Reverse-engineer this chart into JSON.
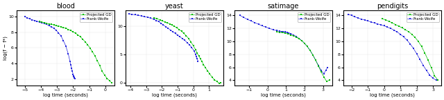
{
  "titles": [
    "blood",
    "yeast",
    "satimage",
    "pendigits"
  ],
  "ylabel": "log(f − f*)",
  "xlabel": "log time (seconds)",
  "legend_labels": [
    "Projected GD",
    "Frank-Wolfe"
  ],
  "colors": {
    "pgd": "#00bb00",
    "fw": "#2222dd"
  },
  "plots": {
    "blood": {
      "xlim": [
        -5.5,
        0.55
      ],
      "ylim": [
        1.2,
        10.8
      ],
      "xticks": [
        -5,
        -4,
        -3,
        -2,
        -1,
        0
      ],
      "yticks": [
        2,
        4,
        6,
        8,
        10
      ],
      "pgd_x": [
        -4.1,
        -3.95,
        -3.8,
        -3.65,
        -3.5,
        -3.35,
        -3.2,
        -3.05,
        -2.9,
        -2.75,
        -2.6,
        -2.45,
        -2.3,
        -2.15,
        -2.0,
        -1.85,
        -1.7,
        -1.55,
        -1.4,
        -1.25,
        -1.1,
        -0.95,
        -0.8,
        -0.65,
        -0.5,
        -0.35,
        -0.2,
        -0.05,
        0.1,
        0.25,
        0.4
      ],
      "pgd_y": [
        9.4,
        9.3,
        9.25,
        9.15,
        9.05,
        9.0,
        8.95,
        8.85,
        8.8,
        8.7,
        8.6,
        8.5,
        8.35,
        8.2,
        8.05,
        7.85,
        7.65,
        7.4,
        7.1,
        6.75,
        6.4,
        5.95,
        5.5,
        4.95,
        4.35,
        3.7,
        3.0,
        2.5,
        2.1,
        1.8,
        1.5
      ],
      "fw_x": [
        -5.0,
        -4.85,
        -4.7,
        -4.55,
        -4.4,
        -4.25,
        -4.1,
        -3.95,
        -3.8,
        -3.65,
        -3.5,
        -3.35,
        -3.2,
        -3.05,
        -2.9,
        -2.75,
        -2.6,
        -2.45,
        -2.3,
        -2.2,
        -2.15,
        -2.1,
        -2.05,
        -2.0,
        -1.98,
        -1.96,
        -1.94,
        -1.92,
        -1.9
      ],
      "fw_y": [
        10.0,
        9.85,
        9.7,
        9.6,
        9.5,
        9.4,
        9.3,
        9.2,
        9.1,
        9.0,
        8.85,
        8.7,
        8.5,
        8.25,
        7.9,
        7.5,
        6.9,
        6.2,
        5.2,
        4.3,
        3.8,
        3.4,
        3.0,
        2.6,
        2.4,
        2.3,
        2.2,
        2.15,
        2.1
      ]
    },
    "yeast": {
      "xlim": [
        -4.3,
        1.9
      ],
      "ylim": [
        -0.5,
        12.8
      ],
      "xticks": [
        -4,
        -3,
        -2,
        -1,
        0,
        1
      ],
      "yticks": [
        0,
        5,
        10
      ],
      "pgd_x": [
        -2.5,
        -2.3,
        -2.1,
        -1.95,
        -1.8,
        -1.65,
        -1.5,
        -1.35,
        -1.2,
        -1.05,
        -0.9,
        -0.75,
        -0.6,
        -0.45,
        -0.3,
        -0.15,
        0.0,
        0.15,
        0.25,
        0.35,
        0.45,
        0.55,
        0.65,
        0.75,
        0.9,
        1.05,
        1.2,
        1.35,
        1.5,
        1.65,
        1.75
      ],
      "pgd_y": [
        11.5,
        11.3,
        11.1,
        10.9,
        10.75,
        10.6,
        10.4,
        10.2,
        9.95,
        9.7,
        9.4,
        9.1,
        8.7,
        8.3,
        7.8,
        7.2,
        6.5,
        5.8,
        5.2,
        4.7,
        4.2,
        3.7,
        3.2,
        2.7,
        2.1,
        1.5,
        0.9,
        0.5,
        0.15,
        -0.1,
        0.0
      ],
      "fw_x": [
        -4.1,
        -3.9,
        -3.7,
        -3.5,
        -3.3,
        -3.1,
        -2.9,
        -2.7,
        -2.5,
        -2.35,
        -2.2,
        -2.05,
        -1.9,
        -1.75,
        -1.6,
        -1.45,
        -1.3,
        -1.15,
        -1.0,
        -0.85,
        -0.7,
        -0.55,
        -0.4,
        -0.25,
        -0.1,
        0.05,
        0.15,
        0.2,
        0.25,
        0.3
      ],
      "fw_y": [
        12.2,
        12.1,
        12.0,
        11.9,
        11.8,
        11.7,
        11.55,
        11.4,
        11.2,
        11.0,
        10.8,
        10.5,
        10.2,
        9.9,
        9.6,
        9.3,
        9.0,
        8.7,
        8.4,
        8.1,
        7.8,
        7.5,
        7.1,
        6.7,
        6.2,
        5.6,
        5.0,
        4.6,
        4.2,
        3.8
      ]
    },
    "satimage": {
      "xlim": [
        -1.8,
        3.5
      ],
      "ylim": [
        3.2,
        14.8
      ],
      "xticks": [
        -1,
        0,
        1,
        2,
        3
      ],
      "yticks": [
        4,
        6,
        8,
        10,
        12,
        14
      ],
      "pgd_x": [
        0.5,
        0.65,
        0.8,
        0.95,
        1.1,
        1.25,
        1.4,
        1.55,
        1.7,
        1.85,
        2.0,
        2.15,
        2.3,
        2.45,
        2.6,
        2.75,
        2.9,
        3.05,
        3.2,
        3.35
      ],
      "pgd_y": [
        11.5,
        11.4,
        11.35,
        11.25,
        11.15,
        11.0,
        10.85,
        10.65,
        10.4,
        10.1,
        9.7,
        9.2,
        8.6,
        7.9,
        7.1,
        6.2,
        5.3,
        4.5,
        3.8,
        4.0
      ],
      "fw_x": [
        -1.5,
        -1.3,
        -1.1,
        -0.9,
        -0.7,
        -0.5,
        -0.3,
        -0.1,
        0.1,
        0.3,
        0.5,
        0.65,
        0.75,
        0.85,
        0.95,
        1.05,
        1.15,
        1.25,
        1.4,
        1.55,
        1.7,
        1.85,
        2.0,
        2.15,
        2.3,
        2.45,
        2.6,
        2.75,
        2.9,
        3.05,
        3.15,
        3.25
      ],
      "fw_y": [
        14.0,
        13.7,
        13.4,
        13.15,
        12.9,
        12.65,
        12.4,
        12.2,
        12.0,
        11.8,
        11.65,
        11.55,
        11.5,
        11.45,
        11.45,
        11.4,
        11.3,
        11.2,
        11.0,
        10.75,
        10.45,
        10.1,
        9.7,
        9.2,
        8.6,
        7.9,
        7.1,
        6.3,
        5.5,
        5.0,
        5.5,
        6.0
      ]
    },
    "pendigits": {
      "xlim": [
        -2.5,
        3.5
      ],
      "ylim": [
        3.2,
        14.8
      ],
      "xticks": [
        -2,
        -1,
        0,
        1,
        2,
        3
      ],
      "yticks": [
        4,
        6,
        8,
        10,
        12,
        14
      ],
      "pgd_x": [
        -0.1,
        0.1,
        0.3,
        0.5,
        0.7,
        0.9,
        1.1,
        1.3,
        1.5,
        1.7,
        1.9,
        2.1,
        2.3,
        2.5,
        2.7,
        2.9,
        3.1,
        3.3
      ],
      "pgd_y": [
        13.5,
        13.3,
        13.1,
        12.85,
        12.6,
        12.35,
        12.1,
        11.8,
        11.5,
        11.1,
        10.6,
        10.0,
        9.2,
        8.2,
        7.1,
        5.9,
        4.7,
        4.0
      ],
      "fw_x": [
        -2.2,
        -2.0,
        -1.8,
        -1.6,
        -1.4,
        -1.2,
        -1.0,
        -0.8,
        -0.6,
        -0.4,
        -0.2,
        0.0,
        0.2,
        0.4,
        0.6,
        0.8,
        1.0,
        1.2,
        1.4,
        1.6,
        1.8,
        2.0,
        2.2,
        2.4,
        2.6,
        2.8,
        3.0,
        3.2
      ],
      "fw_y": [
        14.2,
        14.0,
        13.8,
        13.6,
        13.45,
        13.3,
        13.15,
        13.0,
        12.85,
        12.7,
        12.55,
        12.4,
        12.2,
        12.0,
        11.75,
        11.45,
        11.1,
        10.7,
        10.2,
        9.6,
        8.9,
        8.1,
        7.2,
        6.3,
        5.5,
        4.8,
        4.3,
        4.0
      ]
    }
  }
}
